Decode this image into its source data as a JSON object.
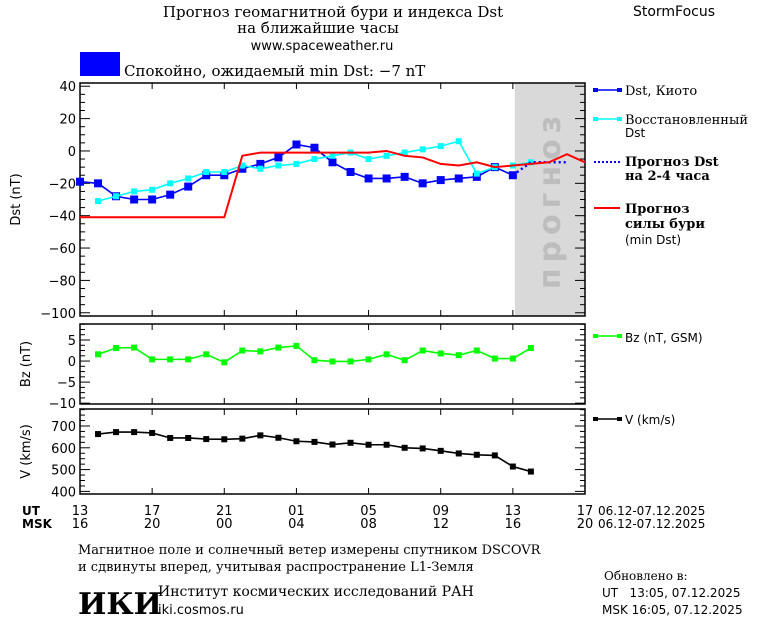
{
  "header": {
    "title_line1": "Прогноз геомагнитной бури и индекса Dst",
    "title_line2": "на ближайшие часы",
    "url": "www.spaceweather.ru",
    "brand": "StormFocus",
    "status_text": "Спокойно, ожидаемый min Dst: −7 nT",
    "status_color": "#0000ff"
  },
  "legend": {
    "dst_kyoto": "Dst, Киото",
    "dst_restored_1": "Восстановленный",
    "dst_restored_2": "Dst",
    "forecast_1": "Прогноз Dst",
    "forecast_2": "на 2-4 часа",
    "storm_1": "Прогноз",
    "storm_2": "силы бури",
    "storm_3": "(min Dst)",
    "bz": "Bz (nT, GSM)",
    "v": "V (km/s)"
  },
  "forecast_zone_label": "прогноз",
  "axes": {
    "ut_label": "UT",
    "msk_label": "MSK",
    "ut_ticks": [
      "13",
      "17",
      "21",
      "01",
      "05",
      "09",
      "13",
      "17"
    ],
    "msk_ticks": [
      "16",
      "20",
      "00",
      "04",
      "08",
      "12",
      "16",
      "20"
    ],
    "ut_date": "06.12-07.12.2025",
    "msk_date": "06.12-07.12.2025"
  },
  "footer": {
    "note_1": "Магнитное поле и солнечный ветер измерены спутником DSCOVR",
    "note_2": "и сдвинуты вперед, учитывая распространение L1-Земля",
    "institute": "Институт космических исследований РАН",
    "institute_url": "iki.cosmos.ru",
    "logo_text": "ИКИ",
    "updated_label": "Обновлено в:",
    "updated_ut": "UT   13:05, 07.12.2025",
    "updated_msk": "MSK 16:05, 07.12.2025"
  },
  "chart_data": [
    {
      "type": "line",
      "ylabel": "Dst (nT)",
      "ylim": [
        -102,
        42
      ],
      "yticks": [
        40,
        20,
        0,
        -20,
        -40,
        -60,
        -80,
        -100
      ],
      "xlim_hours_from_06_12_00UT": [
        13,
        41
      ],
      "forecast_zone": [
        37,
        41
      ],
      "series": [
        {
          "name": "Dst, Киото",
          "color": "#0000ff",
          "x": [
            13,
            14,
            15,
            16,
            17,
            18,
            19,
            20,
            21,
            22,
            23,
            24,
            25,
            26,
            27,
            28,
            29,
            30,
            31,
            32,
            33,
            34,
            35,
            36,
            37
          ],
          "y": [
            -19,
            -20,
            -28,
            -30,
            -30,
            -27,
            -22,
            -15,
            -15,
            -11,
            -8,
            -4,
            4,
            2,
            -7,
            -13,
            -17,
            -17,
            -16,
            -20,
            -18,
            -17,
            -16,
            -10,
            -15
          ]
        },
        {
          "name": "Восстановленный Dst",
          "color": "#00ffff",
          "x": [
            14,
            15,
            16,
            17,
            18,
            19,
            20,
            21,
            22,
            23,
            24,
            25,
            26,
            27,
            28,
            29,
            30,
            31,
            32,
            33,
            34,
            35,
            36,
            37,
            38
          ],
          "y": [
            -31,
            -28,
            -25,
            -24,
            -20,
            -17,
            -13,
            -13,
            -9,
            -11,
            -9,
            -8,
            -5,
            -3,
            -1,
            -5,
            -3,
            -1,
            1,
            3,
            6,
            -14,
            -10,
            -9,
            -7
          ]
        },
        {
          "name": "Прогноз Dst на 2-4 часа",
          "color": "#0000ff",
          "style": "dotted",
          "x": [
            37,
            38,
            40
          ],
          "y": [
            -15,
            -7,
            -7
          ]
        },
        {
          "name": "Прогноз силы бури (min Dst)",
          "color": "#ff0000",
          "x": [
            13,
            21,
            22,
            23,
            29,
            30,
            31,
            32,
            33,
            34,
            35,
            36,
            37,
            38,
            39,
            40,
            41
          ],
          "y": [
            -41,
            -41,
            -3,
            -1,
            -1,
            0,
            -3,
            -4,
            -8,
            -9,
            -7,
            -10,
            -9,
            -8,
            -7,
            -2,
            -7
          ],
          "y_tail": -7
        }
      ]
    },
    {
      "type": "line",
      "ylabel": "Bz (nT)",
      "ylim": [
        -10.2,
        8.8
      ],
      "yticks": [
        5,
        0,
        -5,
        -10
      ],
      "series": [
        {
          "name": "Bz (nT, GSM)",
          "color": "#00ff00",
          "x": [
            14,
            15,
            16,
            17,
            18,
            19,
            20,
            21,
            22,
            23,
            24,
            25,
            26,
            27,
            28,
            29,
            30,
            31,
            32,
            33,
            34,
            35,
            36,
            37,
            38
          ],
          "y": [
            1.6,
            3.1,
            3.2,
            0.4,
            0.4,
            0.4,
            1.6,
            -0.3,
            2.5,
            2.3,
            3.2,
            3.6,
            0.2,
            -0.1,
            -0.1,
            0.4,
            1.6,
            0.2,
            2.5,
            1.8,
            1.4,
            2.5,
            0.6,
            0.6,
            3.1
          ]
        }
      ]
    },
    {
      "type": "line",
      "ylabel": "V (km/s)",
      "ylim": [
        388,
        778
      ],
      "yticks": [
        700,
        600,
        500,
        400
      ],
      "series": [
        {
          "name": "V (km/s)",
          "color": "#000000",
          "x": [
            14,
            15,
            16,
            17,
            18,
            19,
            20,
            21,
            22,
            23,
            24,
            25,
            26,
            27,
            28,
            29,
            30,
            31,
            32,
            33,
            34,
            35,
            36,
            37,
            38
          ],
          "y": [
            663,
            672,
            672,
            668,
            645,
            645,
            640,
            639,
            642,
            657,
            646,
            630,
            627,
            615,
            623,
            614,
            614,
            600,
            597,
            586,
            574,
            568,
            565,
            514,
            491
          ]
        }
      ]
    }
  ]
}
